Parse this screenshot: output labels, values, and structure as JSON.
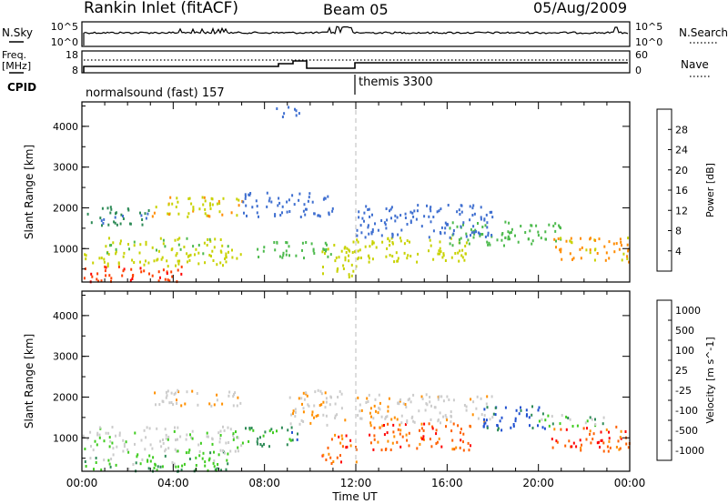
{
  "header": {
    "station": "Rankin Inlet (fitACF)",
    "beam": "Beam 05",
    "date": "05/Aug/2009"
  },
  "nsky": {
    "label": "N.Sky",
    "tick_high": "10^5",
    "tick_low": "10^0",
    "right_label": "N.Search",
    "right_tick_high": "10^5",
    "right_tick_low": "10^0"
  },
  "freq": {
    "label_line1": "Freq.",
    "label_line2": "[MHz]",
    "tick_high": "18",
    "tick_low": "8",
    "right_label": "Nave",
    "right_tick_high": "60",
    "right_tick_low": "0"
  },
  "cpid": {
    "label": "CPID",
    "segments": [
      {
        "start_hour": 0,
        "end_hour": 12,
        "text": "normalsound (fast) 157"
      },
      {
        "start_hour": 12,
        "end_hour": 24,
        "text": "themis 3300"
      }
    ]
  },
  "time_axis": {
    "title": "Time UT",
    "ticks": [
      "00:00",
      "04:00",
      "08:00",
      "12:00",
      "16:00",
      "20:00",
      "00:00"
    ]
  },
  "colors": {
    "power": [
      "#0000ff",
      "#3f6fd0",
      "#2e8b57",
      "#4dba4d",
      "#c8d200",
      "#ff8c00",
      "#ff4000",
      "#ff0000"
    ],
    "velocity": [
      "#ff0000",
      "#ff6000",
      "#ff9000",
      "#cccccc",
      "#cccccc",
      "#40cc20",
      "#2e8b57",
      "#2050d0"
    ]
  },
  "chart_data": [
    {
      "type": "heatmap",
      "name": "power",
      "ylabel": "Slant Range [km]",
      "xlim": [
        0,
        24
      ],
      "ylim": [
        180,
        4600
      ],
      "yticks": [
        1000,
        2000,
        3000,
        4000
      ],
      "colorbar": {
        "label": "Power [dB]",
        "ticks": [
          "4",
          "8",
          "12",
          "16",
          "20",
          "24",
          "28"
        ],
        "range": [
          0,
          32
        ]
      },
      "regions": [
        {
          "t0": 0.0,
          "t1": 4.5,
          "r0": 200,
          "r1": 600,
          "value": 27
        },
        {
          "t0": 0.0,
          "t1": 7.0,
          "r0": 600,
          "r1": 900,
          "value": 17
        },
        {
          "t0": 1.0,
          "t1": 7.0,
          "r0": 900,
          "r1": 1300,
          "value": 16
        },
        {
          "t0": 3.0,
          "t1": 7.0,
          "r0": 1800,
          "r1": 2300,
          "value": 19
        },
        {
          "t0": 0.2,
          "t1": 3.0,
          "r0": 1600,
          "r1": 2100,
          "value": 8
        },
        {
          "t0": 7.5,
          "t1": 11.0,
          "r0": 800,
          "r1": 1200,
          "value": 14
        },
        {
          "t0": 7.0,
          "t1": 11.0,
          "r0": 1800,
          "r1": 2400,
          "value": 6
        },
        {
          "t0": 10.5,
          "t1": 12.0,
          "r0": 300,
          "r1": 1200,
          "value": 18
        },
        {
          "t0": 12.0,
          "t1": 17.0,
          "r0": 700,
          "r1": 1300,
          "value": 18
        },
        {
          "t0": 16.0,
          "t1": 21.0,
          "r0": 1100,
          "r1": 1700,
          "value": 14
        },
        {
          "t0": 12.0,
          "t1": 18.0,
          "r0": 1300,
          "r1": 2100,
          "value": 6
        },
        {
          "t0": 20.5,
          "t1": 24.0,
          "r0": 700,
          "r1": 1300,
          "value": 20
        },
        {
          "t0": 8.5,
          "t1": 9.5,
          "r0": 4200,
          "r1": 4500,
          "value": 6
        }
      ]
    },
    {
      "type": "heatmap",
      "name": "velocity",
      "ylabel": "Slant Range [km]",
      "xlim": [
        0,
        24
      ],
      "ylim": [
        180,
        4600
      ],
      "yticks": [
        1000,
        2000,
        3000,
        4000
      ],
      "colorbar": {
        "label": "Velocity [m s^-1]",
        "ticks": [
          "1000",
          "500",
          "100",
          "25",
          "-25",
          "-100",
          "-500",
          "-1000"
        ]
      },
      "regions": [
        {
          "t0": 0.0,
          "t1": 6.5,
          "r0": 200,
          "r1": 700,
          "value": 2
        },
        {
          "t0": 0.0,
          "t1": 7.0,
          "r0": 700,
          "r1": 1300,
          "value": 1
        },
        {
          "t0": 3.0,
          "t1": 7.0,
          "r0": 1800,
          "r1": 2200,
          "value": 0
        },
        {
          "t0": 7.0,
          "t1": 9.5,
          "r0": 800,
          "r1": 1300,
          "value": 3
        },
        {
          "t0": 9.0,
          "t1": 11.5,
          "r0": 1300,
          "r1": 2200,
          "value": 0
        },
        {
          "t0": 10.5,
          "t1": 12.0,
          "r0": 400,
          "r1": 1100,
          "value": -2
        },
        {
          "t0": 12.5,
          "t1": 17.0,
          "r0": 700,
          "r1": 1400,
          "value": -2
        },
        {
          "t0": 12.0,
          "t1": 18.0,
          "r0": 1400,
          "r1": 2100,
          "value": 0
        },
        {
          "t0": 17.5,
          "t1": 20.5,
          "r0": 1200,
          "r1": 1800,
          "value": 4
        },
        {
          "t0": 20.5,
          "t1": 24.0,
          "r0": 700,
          "r1": 1300,
          "value": -2
        },
        {
          "t0": 20.0,
          "t1": 23.0,
          "r0": 1300,
          "r1": 1600,
          "value": 2
        }
      ]
    }
  ]
}
